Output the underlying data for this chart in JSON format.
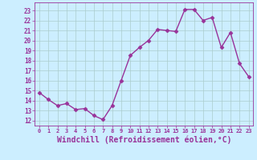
{
  "x": [
    0,
    1,
    2,
    3,
    4,
    5,
    6,
    7,
    8,
    9,
    10,
    11,
    12,
    13,
    14,
    15,
    16,
    17,
    18,
    19,
    20,
    21,
    22,
    23
  ],
  "y": [
    14.8,
    14.1,
    13.5,
    13.7,
    13.1,
    13.2,
    12.5,
    12.1,
    13.5,
    16.0,
    18.5,
    19.3,
    20.0,
    21.1,
    21.0,
    20.9,
    23.1,
    23.1,
    22.0,
    22.3,
    19.3,
    20.8,
    17.7,
    16.4
  ],
  "line_color": "#993399",
  "marker": "D",
  "markersize": 2.5,
  "linewidth": 1.0,
  "xlabel": "Windchill (Refroidissement éolien,°C)",
  "xlabel_fontsize": 7,
  "ytick_vals": [
    12,
    13,
    14,
    15,
    16,
    17,
    18,
    19,
    20,
    21,
    22,
    23
  ],
  "xtick_labels": [
    "0",
    "1",
    "2",
    "3",
    "4",
    "5",
    "6",
    "7",
    "8",
    "9",
    "10",
    "11",
    "12",
    "13",
    "14",
    "15",
    "16",
    "17",
    "18",
    "19",
    "20",
    "21",
    "22",
    "23"
  ],
  "ylim": [
    11.5,
    23.8
  ],
  "xlim": [
    -0.5,
    23.5
  ],
  "bg_color": "#cceeff",
  "grid_color": "#aacccc",
  "line_label_color": "#993399"
}
